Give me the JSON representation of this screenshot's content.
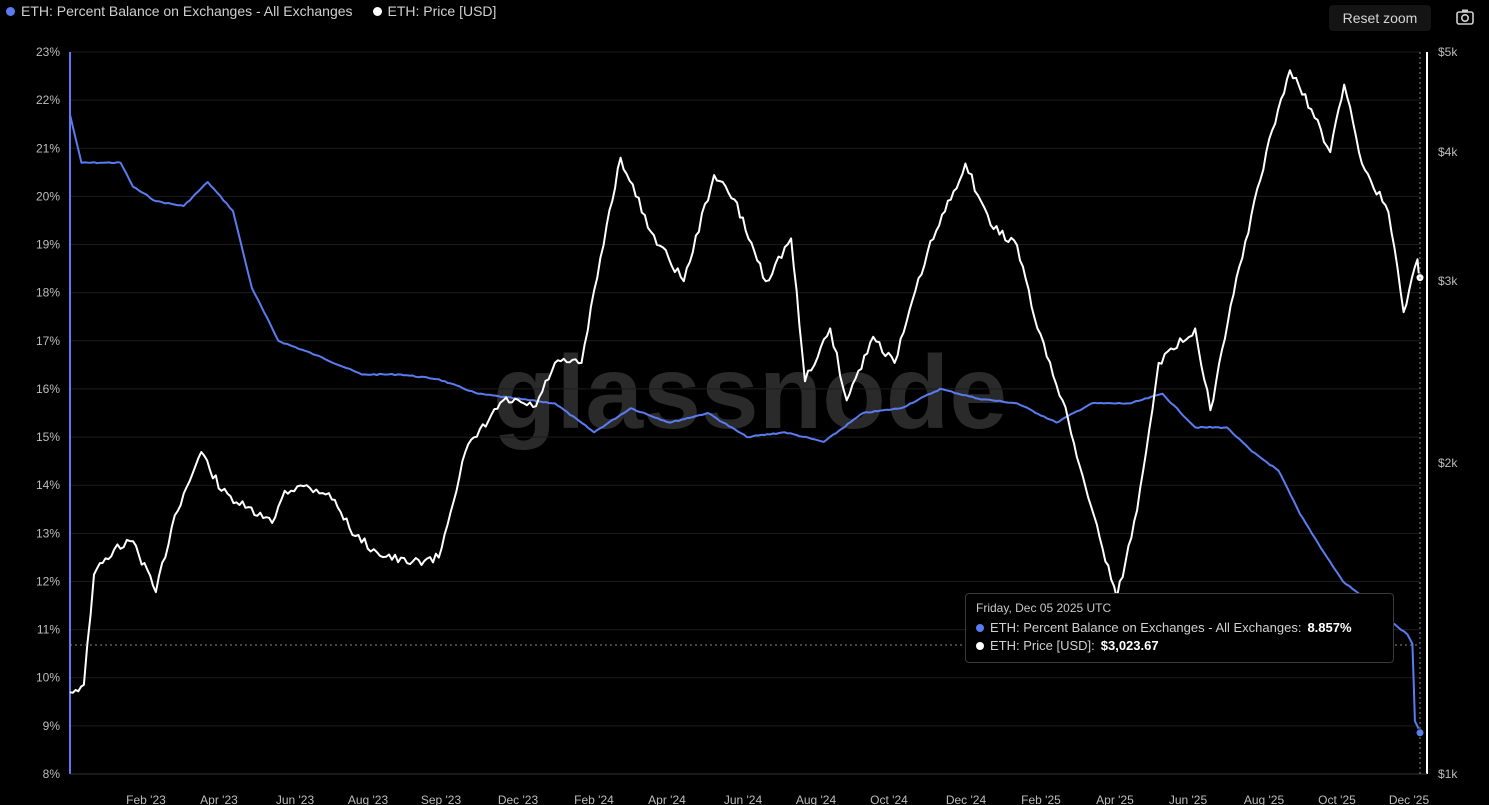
{
  "header": {
    "legend": [
      {
        "label": "ETH: Percent Balance on Exchanges - All Exchanges",
        "color": "#5b7cf0"
      },
      {
        "label": "ETH: Price [USD]",
        "color": "#ffffff"
      }
    ],
    "reset_zoom_label": "Reset zoom",
    "camera_icon": "camera-icon"
  },
  "watermark": "glassnode",
  "tooltip": {
    "date": "Friday, Dec 05 2025 UTC",
    "rows": [
      {
        "label": "ETH: Percent Balance on Exchanges - All Exchanges: ",
        "value": "8.857%",
        "color": "#5b7cf0"
      },
      {
        "label": "ETH: Price [USD]: ",
        "value": "$3,023.67",
        "color": "#ffffff"
      }
    ]
  },
  "chart_data": {
    "type": "line",
    "x_tick_labels": [
      "Feb '23",
      "Apr '23",
      "Jun '23",
      "Aug '23",
      "Sep '23",
      "Dec '23",
      "Feb '24",
      "Apr '24",
      "Jun '24",
      "Aug '24",
      "Oct '24",
      "Dec '24",
      "Feb '25",
      "Apr '25",
      "Jun '25",
      "Aug '25",
      "Oct '25",
      "Dec '25"
    ],
    "left_axis": {
      "ticks": [
        "23%",
        "22%",
        "21%",
        "20%",
        "19%",
        "18%",
        "17%",
        "16%",
        "15%",
        "14%",
        "13%",
        "12%",
        "11%",
        "10%",
        "9%",
        "8%"
      ],
      "ylim": [
        8,
        23
      ]
    },
    "right_axis": {
      "ticks": [
        "$5k",
        "$4k",
        "$3k",
        "$2k",
        "$1k"
      ],
      "scale": "log",
      "ylim": [
        1000,
        5000
      ]
    },
    "grid": true,
    "series": [
      {
        "name": "ETH: Percent Balance on Exchanges - All Exchanges",
        "color": "#5b7cf0",
        "axis": "left",
        "points": [
          [
            "2023-01-01",
            21.7
          ],
          [
            "2023-01-10",
            20.7
          ],
          [
            "2023-01-25",
            20.7
          ],
          [
            "2023-02-10",
            20.7
          ],
          [
            "2023-02-20",
            20.2
          ],
          [
            "2023-03-10",
            19.9
          ],
          [
            "2023-04-01",
            19.8
          ],
          [
            "2023-04-20",
            20.3
          ],
          [
            "2023-05-10",
            19.7
          ],
          [
            "2023-05-25",
            18.1
          ],
          [
            "2023-06-15",
            17.0
          ],
          [
            "2023-07-15",
            16.7
          ],
          [
            "2023-08-20",
            16.3
          ],
          [
            "2023-09-20",
            16.3
          ],
          [
            "2023-10-20",
            16.2
          ],
          [
            "2023-11-20",
            15.9
          ],
          [
            "2023-12-20",
            15.8
          ],
          [
            "2024-01-20",
            15.7
          ],
          [
            "2024-02-20",
            15.1
          ],
          [
            "2024-03-20",
            15.6
          ],
          [
            "2024-04-20",
            15.3
          ],
          [
            "2024-05-20",
            15.5
          ],
          [
            "2024-06-20",
            15.0
          ],
          [
            "2024-07-20",
            15.1
          ],
          [
            "2024-08-20",
            14.9
          ],
          [
            "2024-09-20",
            15.5
          ],
          [
            "2024-10-20",
            15.6
          ],
          [
            "2024-11-20",
            16.0
          ],
          [
            "2024-12-20",
            15.8
          ],
          [
            "2025-01-20",
            15.7
          ],
          [
            "2025-02-20",
            15.3
          ],
          [
            "2025-03-20",
            15.7
          ],
          [
            "2025-04-20",
            15.7
          ],
          [
            "2025-05-15",
            15.9
          ],
          [
            "2025-06-10",
            15.2
          ],
          [
            "2025-07-05",
            15.2
          ],
          [
            "2025-07-25",
            14.7
          ],
          [
            "2025-08-15",
            14.3
          ],
          [
            "2025-09-01",
            13.4
          ],
          [
            "2025-09-20",
            12.6
          ],
          [
            "2025-10-05",
            12.0
          ],
          [
            "2025-10-20",
            11.7
          ],
          [
            "2025-11-05",
            11.3
          ],
          [
            "2025-11-25",
            10.9
          ],
          [
            "2025-11-29",
            10.7
          ],
          [
            "2025-12-01",
            9.1
          ],
          [
            "2025-12-05",
            8.857
          ]
        ]
      },
      {
        "name": "ETH: Price [USD]",
        "color": "#ffffff",
        "axis": "right",
        "points": [
          [
            "2023-01-01",
            1200
          ],
          [
            "2023-01-12",
            1220
          ],
          [
            "2023-01-20",
            1560
          ],
          [
            "2023-02-05",
            1650
          ],
          [
            "2023-02-20",
            1680
          ],
          [
            "2023-03-10",
            1500
          ],
          [
            "2023-03-25",
            1780
          ],
          [
            "2023-04-15",
            2050
          ],
          [
            "2023-05-01",
            1880
          ],
          [
            "2023-05-20",
            1810
          ],
          [
            "2023-06-10",
            1750
          ],
          [
            "2023-06-20",
            1880
          ],
          [
            "2023-07-05",
            1900
          ],
          [
            "2023-07-25",
            1870
          ],
          [
            "2023-08-15",
            1700
          ],
          [
            "2023-09-01",
            1640
          ],
          [
            "2023-09-25",
            1600
          ],
          [
            "2023-10-20",
            1620
          ],
          [
            "2023-11-10",
            2050
          ],
          [
            "2023-12-10",
            2300
          ],
          [
            "2024-01-05",
            2270
          ],
          [
            "2024-01-20",
            2500
          ],
          [
            "2024-02-10",
            2500
          ],
          [
            "2024-03-01",
            3400
          ],
          [
            "2024-03-12",
            3950
          ],
          [
            "2024-04-05",
            3350
          ],
          [
            "2024-05-01",
            3000
          ],
          [
            "2024-05-25",
            3800
          ],
          [
            "2024-06-10",
            3600
          ],
          [
            "2024-07-05",
            3000
          ],
          [
            "2024-07-25",
            3300
          ],
          [
            "2024-08-05",
            2400
          ],
          [
            "2024-08-25",
            2700
          ],
          [
            "2024-09-07",
            2300
          ],
          [
            "2024-09-28",
            2650
          ],
          [
            "2024-10-15",
            2500
          ],
          [
            "2024-11-10",
            3200
          ],
          [
            "2024-12-10",
            3900
          ],
          [
            "2024-12-30",
            3400
          ],
          [
            "2025-01-20",
            3250
          ],
          [
            "2025-02-05",
            2700
          ],
          [
            "2025-02-25",
            2300
          ],
          [
            "2025-03-15",
            1900
          ],
          [
            "2025-04-09",
            1480
          ],
          [
            "2025-04-25",
            1800
          ],
          [
            "2025-05-12",
            2500
          ],
          [
            "2025-06-10",
            2700
          ],
          [
            "2025-06-22",
            2250
          ],
          [
            "2025-07-15",
            3100
          ],
          [
            "2025-08-10",
            4200
          ],
          [
            "2025-08-24",
            4800
          ],
          [
            "2025-09-10",
            4400
          ],
          [
            "2025-09-25",
            4000
          ],
          [
            "2025-10-06",
            4650
          ],
          [
            "2025-10-20",
            3900
          ],
          [
            "2025-11-10",
            3500
          ],
          [
            "2025-11-22",
            2800
          ],
          [
            "2025-12-03",
            3150
          ],
          [
            "2025-12-05",
            3023.67
          ]
        ]
      }
    ],
    "hover_date": "2025-12-05"
  }
}
